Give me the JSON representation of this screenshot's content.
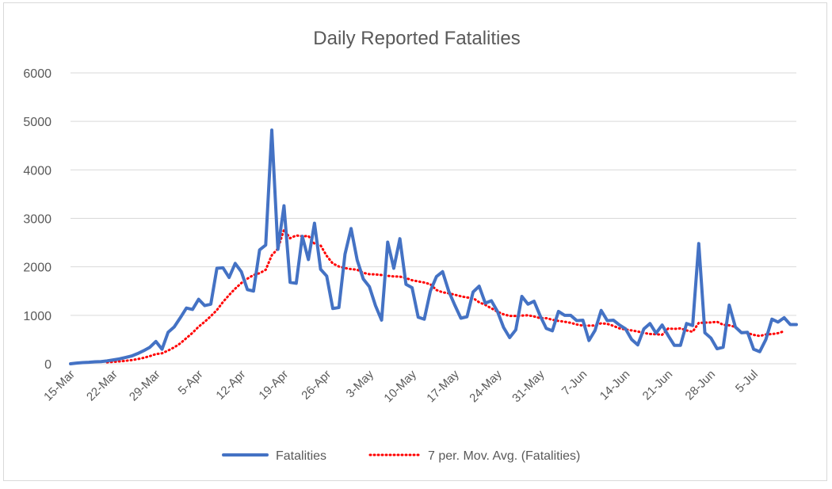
{
  "chart_data": {
    "type": "line",
    "title": "Daily Reported Fatalities",
    "xlabel": "",
    "ylabel": "",
    "ylim": [
      0,
      6000
    ],
    "yticks": [
      "0",
      "1000",
      "2000",
      "3000",
      "4000",
      "5000",
      "6000"
    ],
    "grid": true,
    "legend": "bottom",
    "x_tick_labels": [
      "15-Mar",
      "22-Mar",
      "29-Mar",
      "5-Apr",
      "12-Apr",
      "19-Apr",
      "26-Apr",
      "3-May",
      "10-May",
      "17-May",
      "24-May",
      "31-May",
      "7-Jun",
      "14-Jun",
      "21-Jun",
      "28-Jun",
      "5-Jul"
    ],
    "x_start": "15-Mar",
    "series": [
      {
        "name": "Fatalities",
        "color": "#4472c4",
        "style": "solid",
        "values": [
          0,
          15,
          25,
          30,
          40,
          45,
          60,
          80,
          100,
          130,
          160,
          210,
          270,
          340,
          460,
          300,
          650,
          760,
          950,
          1150,
          1120,
          1330,
          1200,
          1230,
          1970,
          1980,
          1780,
          2070,
          1900,
          1530,
          1500,
          2350,
          2450,
          4820,
          2360,
          3260,
          1680,
          1660,
          2630,
          2150,
          2900,
          1950,
          1810,
          1140,
          1160,
          2260,
          2790,
          2140,
          1750,
          1590,
          1200,
          900,
          2510,
          1970,
          2580,
          1640,
          1570,
          960,
          920,
          1500,
          1800,
          1900,
          1500,
          1210,
          940,
          970,
          1480,
          1600,
          1250,
          1300,
          1080,
          750,
          540,
          700,
          1390,
          1230,
          1290,
          990,
          730,
          680,
          1080,
          1000,
          1000,
          890,
          900,
          480,
          690,
          1100,
          890,
          900,
          800,
          720,
          500,
          390,
          720,
          830,
          630,
          800,
          580,
          380,
          380,
          830,
          790,
          2480,
          640,
          530,
          310,
          340,
          1210,
          760,
          640,
          650,
          300,
          250,
          500,
          920,
          860,
          950,
          810,
          810
        ]
      },
      {
        "name": "7 per. Mov. Avg. (Fatalities)",
        "color": "#ff0000",
        "style": "dotted",
        "start_index": 6,
        "values": [
          31,
          39,
          49,
          61,
          76,
          96,
          123,
          157,
          200,
          216,
          273,
          339,
          421,
          530,
          638,
          765,
          866,
          982,
          1108,
          1275,
          1418,
          1550,
          1665,
          1756,
          1831,
          1869,
          1938,
          2239,
          2373,
          2766,
          2591,
          2647,
          2630,
          2636,
          2475,
          2442,
          2226,
          2068,
          2007,
          1974,
          1952,
          1940,
          1876,
          1848,
          1844,
          1831,
          1814,
          1802,
          1798,
          1768,
          1723,
          1699,
          1676,
          1640,
          1521,
          1475,
          1454,
          1424,
          1392,
          1367,
          1355,
          1268,
          1216,
          1144,
          1074,
          1020,
          987,
          986,
          994,
          1001,
          976,
          941,
          941,
          908,
          884,
          867,
          845,
          810,
          786,
          787,
          789,
          836,
          823,
          782,
          730,
          708,
          688,
          666,
          635,
          615,
          609,
          599,
          728,
          719,
          731,
          688,
          660,
          843,
          849,
          852,
          866,
          805,
          793,
          760,
          654,
          632,
          596,
          573,
          605,
          612,
          632,
          672
        ]
      }
    ]
  }
}
